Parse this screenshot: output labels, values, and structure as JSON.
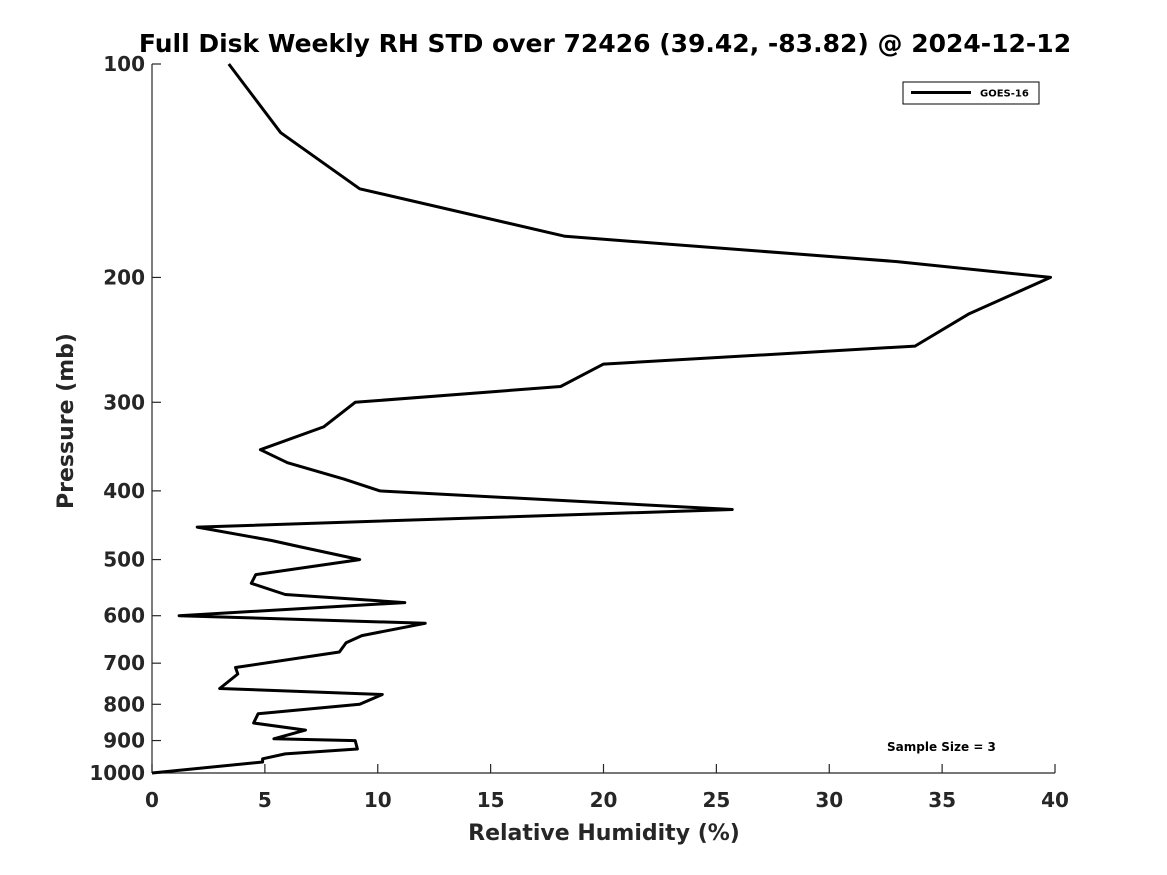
{
  "chart_data": {
    "type": "line",
    "title": "Full Disk Weekly RH STD over 72426 (39.42, -83.82) @ 2024-12-12",
    "xlabel": "Relative Humidity (%)",
    "ylabel": "Pressure (mb)",
    "xlim": [
      0,
      40
    ],
    "ylim": [
      100,
      1000
    ],
    "yscale": "log",
    "y_reversed": true,
    "xticks": [
      0,
      5,
      10,
      15,
      20,
      25,
      30,
      35,
      40
    ],
    "yticks": [
      100,
      200,
      300,
      400,
      500,
      600,
      700,
      800,
      900,
      1000
    ],
    "grid": false,
    "legend": {
      "position": "top-right",
      "entries": [
        "GOES-16"
      ]
    },
    "annotation": "Sample Size = 3",
    "series": [
      {
        "name": "GOES-16",
        "color": "#000000",
        "x": [
          3.4,
          5.7,
          9.2,
          18.3,
          33.0,
          39.8,
          36.2,
          33.8,
          20.0,
          18.1,
          9.0,
          7.6,
          4.8,
          6.0,
          8.5,
          10.1,
          25.7,
          2.0,
          5.3,
          6.6,
          9.2,
          4.6,
          4.4,
          5.9,
          11.2,
          1.2,
          12.1,
          9.3,
          8.6,
          8.3,
          3.7,
          3.8,
          3.0,
          10.2,
          9.2,
          4.7,
          4.5,
          6.8,
          5.4,
          9.0,
          9.1,
          5.9,
          4.9,
          4.9,
          0.0
        ],
        "y": [
          100,
          125,
          150,
          175,
          190,
          200,
          225,
          250,
          265,
          285,
          300,
          325,
          350,
          365,
          385,
          400,
          425,
          450,
          470,
          480,
          500,
          525,
          540,
          560,
          575,
          600,
          615,
          640,
          655,
          675,
          710,
          725,
          760,
          775,
          800,
          825,
          850,
          870,
          895,
          900,
          925,
          940,
          955,
          965,
          1000
        ]
      }
    ]
  }
}
